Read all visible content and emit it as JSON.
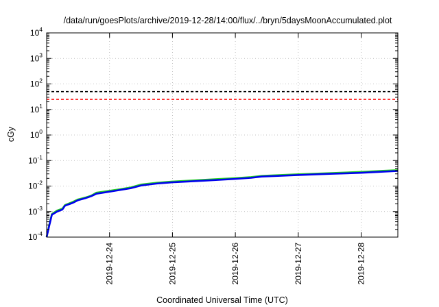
{
  "chart_data": {
    "type": "line",
    "title": "/data/run/goesPlots/archive/2019-12-28/14:00/flux/../bryn/5daysMoonAccumulated.plot",
    "xlabel": "Coordinated Universal Time (UTC)",
    "ylabel": "cGy",
    "y_scale": "log",
    "ylim": [
      0.0001,
      10000
    ],
    "xlim": [
      "2019-12-23T00:00",
      "2019-12-28T14:00"
    ],
    "y_ticks": [
      {
        "base": "10",
        "exp": "-4",
        "value": 0.0001
      },
      {
        "base": "10",
        "exp": "-3",
        "value": 0.001
      },
      {
        "base": "10",
        "exp": "-2",
        "value": 0.01
      },
      {
        "base": "10",
        "exp": "-1",
        "value": 0.1
      },
      {
        "base": "10",
        "exp": "0",
        "value": 1
      },
      {
        "base": "10",
        "exp": "1",
        "value": 10
      },
      {
        "base": "10",
        "exp": "2",
        "value": 100
      },
      {
        "base": "10",
        "exp": "3",
        "value": 1000
      },
      {
        "base": "10",
        "exp": "4",
        "value": 10000
      }
    ],
    "x_ticks": [
      "2019-12-24",
      "2019-12-25",
      "2019-12-26",
      "2019-12-27",
      "2019-12-28"
    ],
    "grid": true,
    "reference_lines": [
      {
        "value": 50,
        "color": "#000000",
        "style": "dashed"
      },
      {
        "value": 25,
        "color": "#ff0000",
        "style": "dashed"
      }
    ],
    "series": [
      {
        "color": "#22cc22",
        "points": [
          [
            "2019-12-23T00:00",
            0.0001
          ],
          [
            "2019-12-23T01:00",
            0.0003
          ],
          [
            "2019-12-23T02:00",
            0.0008
          ],
          [
            "2019-12-23T04:00",
            0.0011
          ],
          [
            "2019-12-23T06:00",
            0.0013
          ],
          [
            "2019-12-23T07:00",
            0.0018
          ],
          [
            "2019-12-23T10:00",
            0.0024
          ],
          [
            "2019-12-23T12:00",
            0.003
          ],
          [
            "2019-12-23T15:00",
            0.0036
          ],
          [
            "2019-12-23T17:00",
            0.0042
          ],
          [
            "2019-12-23T19:00",
            0.0055
          ],
          [
            "2019-12-24T00:00",
            0.0065
          ],
          [
            "2019-12-24T04:00",
            0.0075
          ],
          [
            "2019-12-24T08:00",
            0.0088
          ],
          [
            "2019-12-24T12:00",
            0.0115
          ],
          [
            "2019-12-24T18:00",
            0.0135
          ],
          [
            "2019-12-25T00:00",
            0.015
          ],
          [
            "2019-12-25T12:00",
            0.0175
          ],
          [
            "2019-12-26T00:00",
            0.0205
          ],
          [
            "2019-12-26T06:00",
            0.0225
          ],
          [
            "2019-12-26T10:00",
            0.025
          ],
          [
            "2019-12-27T00:00",
            0.029
          ],
          [
            "2019-12-27T12:00",
            0.032
          ],
          [
            "2019-12-28T00:00",
            0.036
          ],
          [
            "2019-12-28T14:00",
            0.042
          ]
        ]
      },
      {
        "color": "#0000ee",
        "points": [
          [
            "2019-12-23T00:00",
            0.0001
          ],
          [
            "2019-12-23T01:00",
            0.00028
          ],
          [
            "2019-12-23T02:00",
            0.00075
          ],
          [
            "2019-12-23T04:00",
            0.001
          ],
          [
            "2019-12-23T06:00",
            0.0012
          ],
          [
            "2019-12-23T07:00",
            0.0017
          ],
          [
            "2019-12-23T10:00",
            0.0022
          ],
          [
            "2019-12-23T12:00",
            0.0028
          ],
          [
            "2019-12-23T15:00",
            0.0034
          ],
          [
            "2019-12-23T17:00",
            0.004
          ],
          [
            "2019-12-23T19:00",
            0.005
          ],
          [
            "2019-12-24T00:00",
            0.006
          ],
          [
            "2019-12-24T04:00",
            0.007
          ],
          [
            "2019-12-24T08:00",
            0.0082
          ],
          [
            "2019-12-24T12:00",
            0.0105
          ],
          [
            "2019-12-24T18:00",
            0.0125
          ],
          [
            "2019-12-25T00:00",
            0.014
          ],
          [
            "2019-12-25T12:00",
            0.0162
          ],
          [
            "2019-12-26T00:00",
            0.019
          ],
          [
            "2019-12-26T06:00",
            0.021
          ],
          [
            "2019-12-26T10:00",
            0.0235
          ],
          [
            "2019-12-27T00:00",
            0.027
          ],
          [
            "2019-12-27T12:00",
            0.03
          ],
          [
            "2019-12-28T00:00",
            0.033
          ],
          [
            "2019-12-28T14:00",
            0.039
          ]
        ]
      }
    ]
  }
}
